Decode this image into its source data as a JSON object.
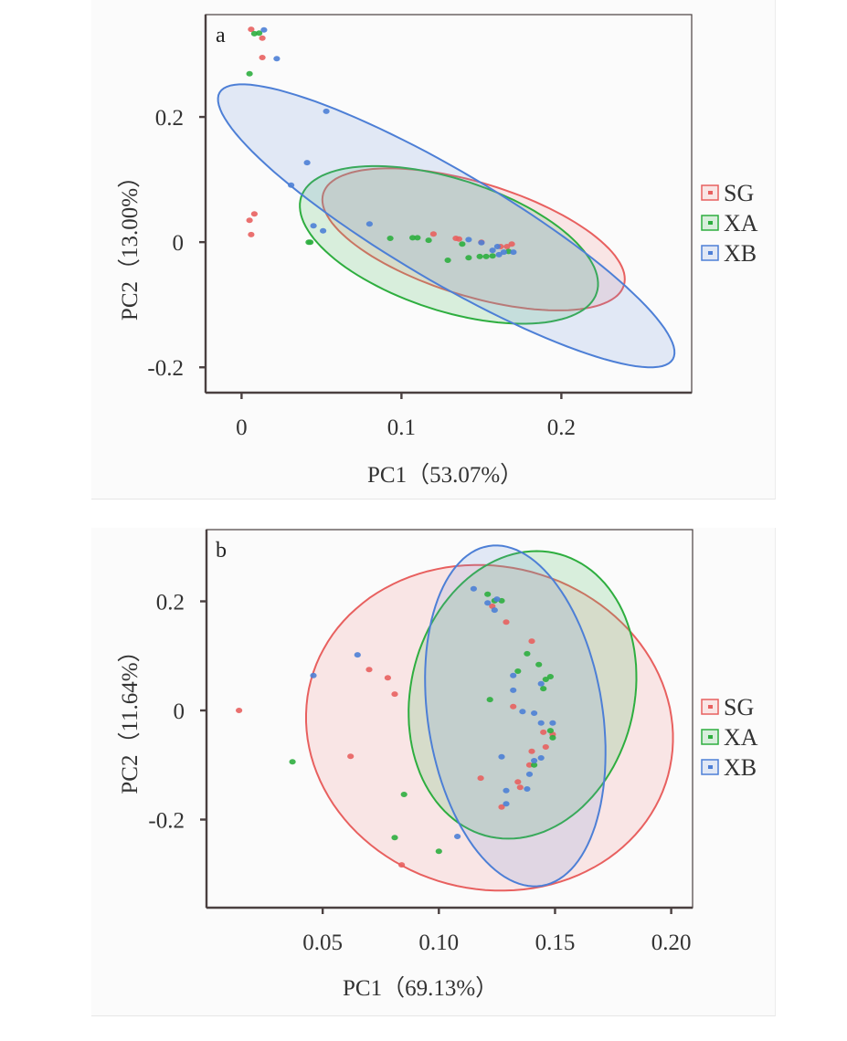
{
  "colors": {
    "SG": "#e8605f",
    "XA": "#2eae3f",
    "XB": "#4d7fd6",
    "SG_fill": "rgba(240,150,150,0.22)",
    "XA_fill": "rgba(90,190,110,0.22)",
    "XB_fill": "rgba(110,150,220,0.18)",
    "axis": "#4a4040"
  },
  "chart_data": [
    {
      "type": "scatter",
      "panel_label": "a",
      "title": "",
      "xlabel": "PC1（53.07%）",
      "ylabel": "PC2（13.00%）",
      "xlim": [
        -0.0225,
        0.2815
      ],
      "ylim": [
        -0.2405,
        0.3635
      ],
      "xticks": [
        0,
        0.1,
        0.2
      ],
      "xtick_labels": [
        "0",
        "0.1",
        "0.2"
      ],
      "yticks": [
        -0.2,
        0,
        0.2
      ],
      "ytick_labels": [
        "-0.2",
        "0",
        "0.2"
      ],
      "grid": false,
      "legend": {
        "position": "right",
        "entries": [
          "SG",
          "XA",
          "XB"
        ]
      },
      "series": [
        {
          "name": "SG",
          "points": [
            [
              0.006,
              0.34
            ],
            [
              0.013,
              0.326
            ],
            [
              0.013,
              0.295
            ],
            [
              0.008,
              0.045
            ],
            [
              0.005,
              0.035
            ],
            [
              0.006,
              0.012
            ],
            [
              0.12,
              0.013
            ],
            [
              0.134,
              0.006
            ],
            [
              0.136,
              0.005
            ],
            [
              0.15,
              0.0
            ],
            [
              0.162,
              -0.007
            ],
            [
              0.166,
              -0.007
            ],
            [
              0.169,
              -0.003
            ]
          ],
          "ellipse": {
            "center": [
              0.1451,
              0.0044
            ],
            "axis1": [
              0.094,
              -0.0734
            ],
            "axis2": [
              -0.0103,
              -0.0866
            ]
          }
        },
        {
          "name": "XA",
          "points": [
            [
              0.008,
              0.333
            ],
            [
              0.011,
              0.334
            ],
            [
              0.005,
              0.269
            ],
            [
              0.042,
              0.0
            ],
            [
              0.043,
              0.0
            ],
            [
              0.093,
              0.006
            ],
            [
              0.107,
              0.007
            ],
            [
              0.11,
              0.007
            ],
            [
              0.117,
              0.003
            ],
            [
              0.129,
              -0.029
            ],
            [
              0.138,
              -0.003
            ],
            [
              0.142,
              -0.025
            ],
            [
              0.149,
              -0.023
            ],
            [
              0.153,
              -0.023
            ],
            [
              0.157,
              -0.022
            ],
            [
              0.167,
              -0.015
            ]
          ],
          "ellipse": {
            "center": [
              0.1297,
              -0.0044
            ],
            "axis1": [
              0.0924,
              -0.0766
            ],
            "axis2": [
              -0.0127,
              -0.1
            ]
          }
        },
        {
          "name": "XB",
          "points": [
            [
              0.014,
              0.339
            ],
            [
              0.022,
              0.293
            ],
            [
              0.053,
              0.209
            ],
            [
              0.041,
              0.127
            ],
            [
              0.031,
              0.091
            ],
            [
              0.045,
              0.026
            ],
            [
              0.051,
              0.018
            ],
            [
              0.08,
              0.029
            ],
            [
              0.142,
              0.004
            ],
            [
              0.15,
              -0.001
            ],
            [
              0.157,
              -0.013
            ],
            [
              0.16,
              -0.007
            ],
            [
              0.164,
              -0.016
            ],
            [
              0.17,
              -0.016
            ],
            [
              0.161,
              -0.02
            ]
          ],
          "ellipse": {
            "center": [
              0.128,
              0.026
            ],
            "axis1": [
              0.1417,
              -0.2131
            ],
            "axis2": [
              -0.0174,
              -0.0755
            ]
          }
        }
      ]
    },
    {
      "type": "scatter",
      "panel_label": "b",
      "title": "",
      "xlabel": "PC1（69.13%）",
      "ylabel": "PC2（11.64%）",
      "xlim": [
        0.0,
        0.2092
      ],
      "ylim": [
        -0.3615,
        0.3314
      ],
      "xticks": [
        0.05,
        0.1,
        0.15,
        0.2
      ],
      "xtick_labels": [
        "0.05",
        "0.10",
        "0.15",
        "0.20"
      ],
      "yticks": [
        -0.2,
        0,
        0.2
      ],
      "ytick_labels": [
        "-0.2",
        "0",
        "0.2"
      ],
      "grid": false,
      "legend": {
        "position": "right",
        "entries": [
          "SG",
          "XA",
          "XB"
        ]
      },
      "series": [
        {
          "name": "SG",
          "points": [
            [
              0.014,
              0.0
            ],
            [
              0.062,
              -0.084
            ],
            [
              0.07,
              0.075
            ],
            [
              0.078,
              0.06
            ],
            [
              0.081,
              0.03
            ],
            [
              0.084,
              -0.283
            ],
            [
              0.123,
              0.191
            ],
            [
              0.129,
              0.162
            ],
            [
              0.14,
              0.127
            ],
            [
              0.132,
              0.007
            ],
            [
              0.145,
              -0.04
            ],
            [
              0.149,
              -0.044
            ],
            [
              0.146,
              -0.067
            ],
            [
              0.14,
              -0.075
            ],
            [
              0.139,
              -0.1
            ],
            [
              0.134,
              -0.131
            ],
            [
              0.135,
              -0.141
            ],
            [
              0.127,
              -0.177
            ],
            [
              0.118,
              -0.124
            ]
          ],
          "ellipse": {
            "center": [
              0.1218,
              -0.0318
            ],
            "axis1": [
              0.0777,
              -0.072
            ],
            "axis2": [
              -0.0141,
              -0.2897
            ]
          }
        },
        {
          "name": "XA",
          "points": [
            [
              0.037,
              -0.094
            ],
            [
              0.085,
              -0.154
            ],
            [
              0.081,
              -0.233
            ],
            [
              0.1,
              -0.258
            ],
            [
              0.121,
              0.213
            ],
            [
              0.124,
              0.201
            ],
            [
              0.127,
              0.201
            ],
            [
              0.138,
              0.104
            ],
            [
              0.143,
              0.084
            ],
            [
              0.134,
              0.072
            ],
            [
              0.148,
              0.062
            ],
            [
              0.146,
              0.057
            ],
            [
              0.145,
              0.04
            ],
            [
              0.122,
              0.02
            ],
            [
              0.148,
              -0.037
            ],
            [
              0.149,
              -0.05
            ],
            [
              0.141,
              -0.1
            ]
          ],
          "ellipse": {
            "center": [
              0.136,
              0.0285
            ],
            "axis1": [
              0.0161,
              0.2577
            ],
            "axis2": [
              0.0463,
              -0.0551
            ]
          }
        },
        {
          "name": "XB",
          "points": [
            [
              0.046,
              0.064
            ],
            [
              0.065,
              0.102
            ],
            [
              0.115,
              0.223
            ],
            [
              0.121,
              0.197
            ],
            [
              0.125,
              0.204
            ],
            [
              0.124,
              0.184
            ],
            [
              0.132,
              0.064
            ],
            [
              0.144,
              0.049
            ],
            [
              0.132,
              0.037
            ],
            [
              0.136,
              -0.002
            ],
            [
              0.141,
              -0.005
            ],
            [
              0.144,
              -0.023
            ],
            [
              0.149,
              -0.023
            ],
            [
              0.144,
              -0.087
            ],
            [
              0.141,
              -0.092
            ],
            [
              0.127,
              -0.085
            ],
            [
              0.139,
              -0.117
            ],
            [
              0.138,
              -0.144
            ],
            [
              0.129,
              -0.147
            ],
            [
              0.129,
              -0.171
            ],
            [
              0.108,
              -0.231
            ]
          ],
          "ellipse": {
            "center": [
              0.1329,
              -0.01
            ],
            "axis1": [
              -0.0115,
              0.3113
            ],
            "axis2": [
              0.0371,
              0.0263
            ]
          }
        }
      ]
    }
  ]
}
